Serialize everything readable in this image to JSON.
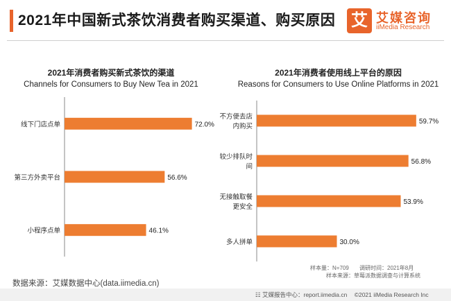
{
  "header": {
    "title": "2021年中国新式茶饮消费者购买渠道、购买原因",
    "logo_mark": "艾",
    "logo_cn": "艾媒咨询",
    "logo_en": "iiMedia Research"
  },
  "colors": {
    "accent": "#e8642b",
    "bar": "#ed7d31"
  },
  "chart_data": [
    {
      "type": "bar",
      "orientation": "horizontal",
      "title": "2021年消费者购买新式茶饮的渠道",
      "subtitle": "Channels for Consumers to Buy New Tea in 2021",
      "categories": [
        [
          "线下门店点单"
        ],
        [
          "第三方外卖平台"
        ],
        [
          "小程序点单"
        ]
      ],
      "values": [
        72.0,
        56.6,
        46.1
      ],
      "value_labels": [
        "72.0%",
        "56.6%",
        "46.1%"
      ],
      "xlim": [
        0,
        100
      ],
      "grid": false,
      "legend": false
    },
    {
      "type": "bar",
      "orientation": "horizontal",
      "title": "2021年消费者使用线上平台的原因",
      "subtitle": "Reasons for Consumers to Use Online Platforms in 2021",
      "categories": [
        [
          "不方便去店",
          "内购买"
        ],
        [
          "较少排队时",
          "间"
        ],
        [
          "无接触取餐",
          "更安全"
        ],
        [
          "多人拼单"
        ]
      ],
      "values": [
        59.7,
        56.8,
        53.9,
        30.0
      ],
      "value_labels": [
        "59.7%",
        "56.8%",
        "53.9%",
        "30.0%"
      ],
      "xlim": [
        0,
        100
      ],
      "grid": false,
      "legend": false
    }
  ],
  "notes": {
    "sample": "样本量：N=709",
    "survey_time": "调研时间：2021年8月",
    "sample_source": "样本来源：草莓派数据调查与计算系统"
  },
  "footer": {
    "source": "数据来源：艾媒数据中心(data.iimedia.cn)",
    "report": "艾媒报告中心：report.iimedia.cn",
    "copyright": "©2021  iiMedia Research  Inc"
  }
}
